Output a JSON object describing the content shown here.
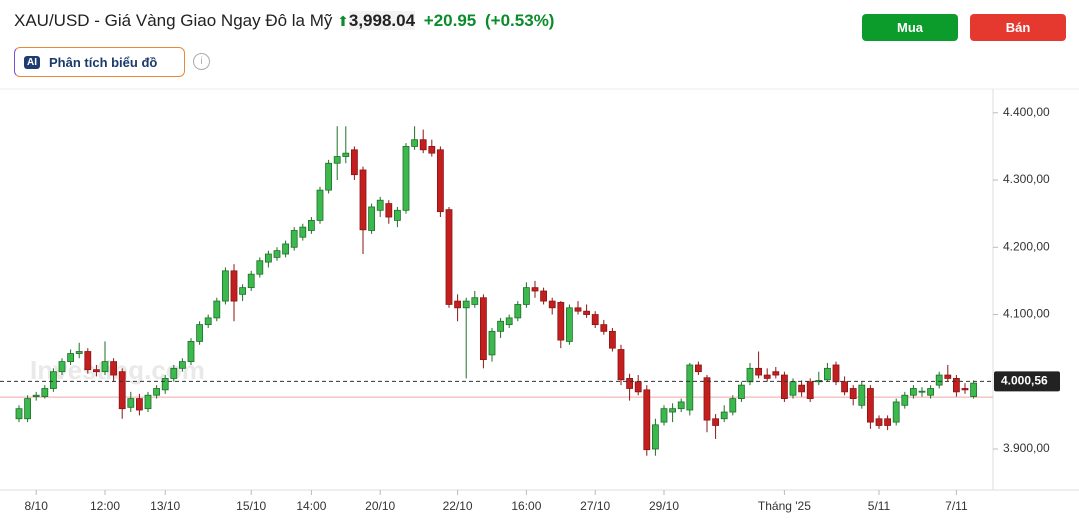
{
  "header": {
    "title": "XAU/USD - Giá Vàng Giao Ngay Đô la Mỹ",
    "price": "3,998.04",
    "change": "+20.95",
    "change_pct": "(+0.53%)",
    "buy": "Mua",
    "sell": "Bán",
    "ai_badge": "AI",
    "ai_button": "Phân tích biểu đồ"
  },
  "chart_data": {
    "type": "candlestick",
    "watermark": "Investing.com",
    "up_color": "#3cb94c",
    "down_color": "#c41f1f",
    "ylim": [
      3845,
      4425
    ],
    "yticks": [
      {
        "value": 3900,
        "label": "3.900,00"
      },
      {
        "value": 4100,
        "label": "4.100,00"
      },
      {
        "value": 4200,
        "label": "4.200,00"
      },
      {
        "value": 4300,
        "label": "4.300,00"
      },
      {
        "value": 4400,
        "label": "4.400,00"
      }
    ],
    "last_price": {
      "value": 4000.56,
      "label": "4.000,56"
    },
    "prev_close": 3977.09,
    "categories": [
      null,
      null,
      "8/10",
      null,
      null,
      null,
      null,
      null,
      null,
      null,
      "12:00",
      null,
      null,
      null,
      null,
      null,
      null,
      "13/10",
      null,
      null,
      null,
      null,
      null,
      null,
      null,
      null,
      null,
      "15/10",
      null,
      null,
      null,
      null,
      null,
      null,
      "14:00",
      null,
      null,
      null,
      null,
      null,
      null,
      null,
      "20/10",
      null,
      null,
      null,
      null,
      null,
      null,
      null,
      null,
      "22/10",
      null,
      null,
      null,
      null,
      null,
      null,
      null,
      "16:00",
      null,
      null,
      null,
      null,
      null,
      null,
      null,
      "27/10",
      null,
      null,
      null,
      null,
      null,
      null,
      null,
      "29/10",
      null,
      null,
      null,
      null,
      null,
      null,
      null,
      null,
      null,
      null,
      null,
      null,
      null,
      "Tháng '25",
      null,
      null,
      null,
      null,
      null,
      null,
      null,
      null,
      null,
      null,
      "5/11",
      null,
      null,
      null,
      null,
      null,
      null,
      null,
      null,
      "7/11",
      null,
      null
    ],
    "ohlc": [
      [
        3945,
        3965,
        3940,
        3960
      ],
      [
        3945,
        3980,
        3940,
        3975
      ],
      [
        3978,
        3985,
        3972,
        3980
      ],
      [
        3978,
        3995,
        3975,
        3990
      ],
      [
        3990,
        4020,
        3985,
        4015
      ],
      [
        4015,
        4035,
        4010,
        4030
      ],
      [
        4030,
        4048,
        4025,
        4042
      ],
      [
        4042,
        4058,
        4035,
        4045
      ],
      [
        4045,
        4050,
        4012,
        4018
      ],
      [
        4018,
        4025,
        4008,
        4015
      ],
      [
        4015,
        4060,
        4010,
        4030
      ],
      [
        4030,
        4035,
        4000,
        4010
      ],
      [
        4015,
        4020,
        3945,
        3960
      ],
      [
        3962,
        3985,
        3955,
        3975
      ],
      [
        3975,
        3982,
        3950,
        3958
      ],
      [
        3960,
        3985,
        3955,
        3980
      ],
      [
        3980,
        3995,
        3975,
        3990
      ],
      [
        3988,
        4010,
        3982,
        4005
      ],
      [
        4005,
        4025,
        4000,
        4020
      ],
      [
        4020,
        4035,
        4015,
        4030
      ],
      [
        4030,
        4065,
        4025,
        4060
      ],
      [
        4060,
        4090,
        4055,
        4085
      ],
      [
        4085,
        4100,
        4080,
        4095
      ],
      [
        4095,
        4125,
        4090,
        4120
      ],
      [
        4120,
        4170,
        4115,
        4165
      ],
      [
        4165,
        4175,
        4090,
        4120
      ],
      [
        4130,
        4145,
        4120,
        4140
      ],
      [
        4140,
        4165,
        4135,
        4160
      ],
      [
        4160,
        4185,
        4155,
        4180
      ],
      [
        4178,
        4195,
        4170,
        4190
      ],
      [
        4185,
        4200,
        4180,
        4195
      ],
      [
        4190,
        4210,
        4185,
        4205
      ],
      [
        4200,
        4230,
        4195,
        4225
      ],
      [
        4215,
        4235,
        4210,
        4230
      ],
      [
        4225,
        4245,
        4220,
        4240
      ],
      [
        4240,
        4290,
        4235,
        4285
      ],
      [
        4285,
        4330,
        4280,
        4325
      ],
      [
        4325,
        4380,
        4300,
        4335
      ],
      [
        4335,
        4380,
        4325,
        4340
      ],
      [
        4345,
        4350,
        4300,
        4308
      ],
      [
        4315,
        4320,
        4190,
        4226
      ],
      [
        4225,
        4265,
        4220,
        4260
      ],
      [
        4255,
        4275,
        4245,
        4270
      ],
      [
        4265,
        4270,
        4235,
        4245
      ],
      [
        4240,
        4260,
        4230,
        4255
      ],
      [
        4255,
        4355,
        4250,
        4350
      ],
      [
        4350,
        4380,
        4345,
        4360
      ],
      [
        4360,
        4375,
        4340,
        4345
      ],
      [
        4350,
        4360,
        4335,
        4340
      ],
      [
        4345,
        4350,
        4245,
        4253
      ],
      [
        4256,
        4260,
        4110,
        4115
      ],
      [
        4120,
        4130,
        4090,
        4110
      ],
      [
        4110,
        4125,
        4005,
        4120
      ],
      [
        4115,
        4135,
        4110,
        4125
      ],
      [
        4125,
        4130,
        4020,
        4033
      ],
      [
        4040,
        4080,
        4030,
        4075
      ],
      [
        4075,
        4095,
        4065,
        4090
      ],
      [
        4085,
        4100,
        4080,
        4095
      ],
      [
        4095,
        4120,
        4090,
        4115
      ],
      [
        4115,
        4148,
        4110,
        4140
      ],
      [
        4140,
        4150,
        4125,
        4135
      ],
      [
        4135,
        4140,
        4115,
        4120
      ],
      [
        4120,
        4125,
        4100,
        4110
      ],
      [
        4118,
        4120,
        4050,
        4062
      ],
      [
        4060,
        4115,
        4055,
        4110
      ],
      [
        4110,
        4120,
        4100,
        4105
      ],
      [
        4105,
        4115,
        4095,
        4100
      ],
      [
        4100,
        4105,
        4080,
        4085
      ],
      [
        4085,
        4092,
        4070,
        4075
      ],
      [
        4075,
        4080,
        4045,
        4050
      ],
      [
        4048,
        4055,
        3995,
        4003
      ],
      [
        4005,
        4012,
        3972,
        3990
      ],
      [
        4000,
        4010,
        3980,
        3985
      ],
      [
        3988,
        3995,
        3890,
        3899
      ],
      [
        3900,
        3945,
        3890,
        3936
      ],
      [
        3940,
        3965,
        3935,
        3960
      ],
      [
        3955,
        3968,
        3940,
        3960
      ],
      [
        3960,
        3975,
        3955,
        3970
      ],
      [
        3958,
        4028,
        3950,
        4025
      ],
      [
        4025,
        4030,
        4010,
        4015
      ],
      [
        4006,
        4010,
        3925,
        3943
      ],
      [
        3945,
        3952,
        3915,
        3935
      ],
      [
        3945,
        3965,
        3940,
        3955
      ],
      [
        3955,
        3980,
        3950,
        3975
      ],
      [
        3975,
        4000,
        3970,
        3995
      ],
      [
        4000,
        4028,
        3995,
        4020
      ],
      [
        4020,
        4045,
        4005,
        4010
      ],
      [
        4010,
        4020,
        4000,
        4005
      ],
      [
        4015,
        4022,
        4005,
        4010
      ],
      [
        4010,
        4015,
        3970,
        3975
      ],
      [
        3980,
        4005,
        3975,
        4000
      ],
      [
        3995,
        4002,
        3978,
        3985
      ],
      [
        4000,
        4005,
        3970,
        3975
      ],
      [
        4000,
        4015,
        3995,
        4002
      ],
      [
        4003,
        4028,
        4000,
        4020
      ],
      [
        4025,
        4030,
        3995,
        4000
      ],
      [
        4000,
        4008,
        3980,
        3985
      ],
      [
        3990,
        3995,
        3965,
        3975
      ],
      [
        3965,
        4000,
        3960,
        3995
      ],
      [
        3990,
        3995,
        3930,
        3940
      ],
      [
        3945,
        3950,
        3930,
        3935
      ],
      [
        3945,
        3950,
        3928,
        3935
      ],
      [
        3940,
        3975,
        3935,
        3970
      ],
      [
        3965,
        3985,
        3960,
        3980
      ],
      [
        3980,
        3995,
        3975,
        3990
      ],
      [
        3985,
        3992,
        3978,
        3986
      ],
      [
        3980,
        3995,
        3975,
        3990
      ],
      [
        3995,
        4015,
        3990,
        4010
      ],
      [
        4010,
        4025,
        4000,
        4005
      ],
      [
        4005,
        4010,
        3978,
        3985
      ],
      [
        3990,
        3998,
        3982,
        3988
      ],
      [
        3978,
        4002,
        3975,
        3998
      ]
    ]
  }
}
